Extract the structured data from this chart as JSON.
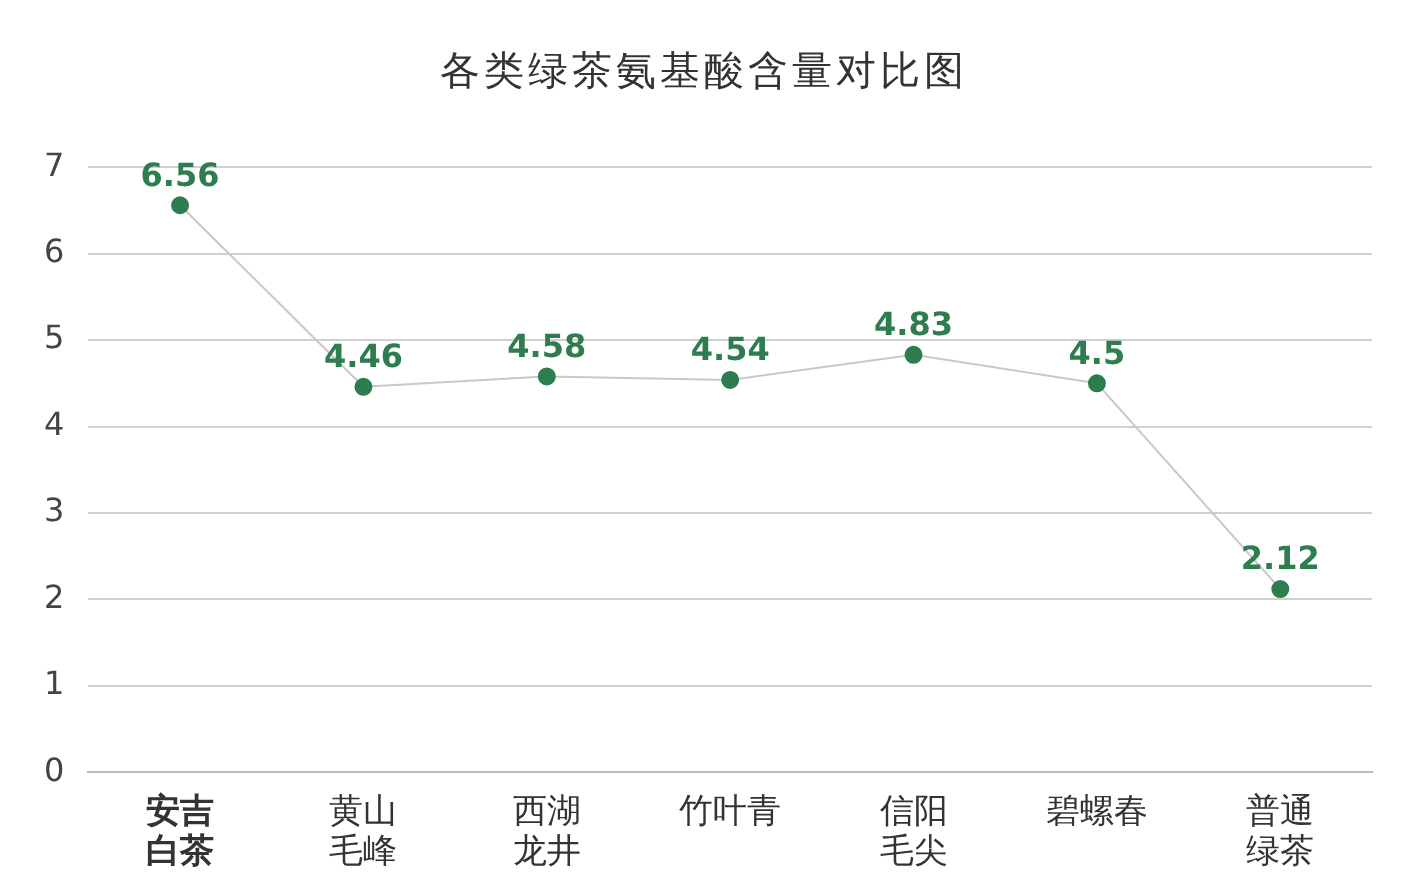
{
  "chart_data": {
    "type": "line",
    "title": "各类绿茶氨基酸含量对比图",
    "categories": [
      "安吉白茶",
      "黄山毛峰",
      "西湖龙井",
      "竹叶青",
      "信阳毛尖",
      "碧螺春",
      "普通绿茶"
    ],
    "series": [
      {
        "color": "#2e7d4f",
        "values": [
          6.56,
          4.46,
          4.58,
          4.54,
          4.83,
          4.5,
          2.12
        ]
      }
    ],
    "ylim": [
      0,
      7
    ],
    "yticks": [
      0,
      1,
      2,
      3,
      4,
      5,
      6,
      7
    ],
    "grid": "y",
    "marker": "circle",
    "data_labels": true,
    "legend": false
  }
}
